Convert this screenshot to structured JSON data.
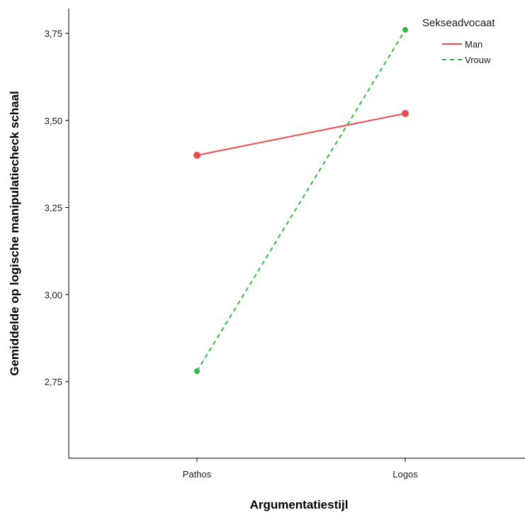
{
  "chart_data": {
    "type": "line",
    "xlabel": "Argumentatiestijl",
    "ylabel": "Gemiddelde op logische manipulatiecheck schaal",
    "categories": [
      "Pathos",
      "Logos"
    ],
    "ylim": [
      2.5,
      3.8
    ],
    "yticks": [
      "2,75",
      "3,00",
      "3,25",
      "3,50",
      "3,75"
    ],
    "ytick_values": [
      2.75,
      3.0,
      3.25,
      3.5,
      3.75
    ],
    "grid": false,
    "legend": {
      "title": "Sekseadvocaat",
      "position": "top-right"
    },
    "series": [
      {
        "name": "Man",
        "values": [
          3.4,
          3.52
        ],
        "color": "#f04a4a",
        "dash": "solid"
      },
      {
        "name": "Vrouw",
        "values": [
          2.78,
          3.76
        ],
        "color": "#2ebd3f",
        "dash": "dashed"
      }
    ]
  }
}
